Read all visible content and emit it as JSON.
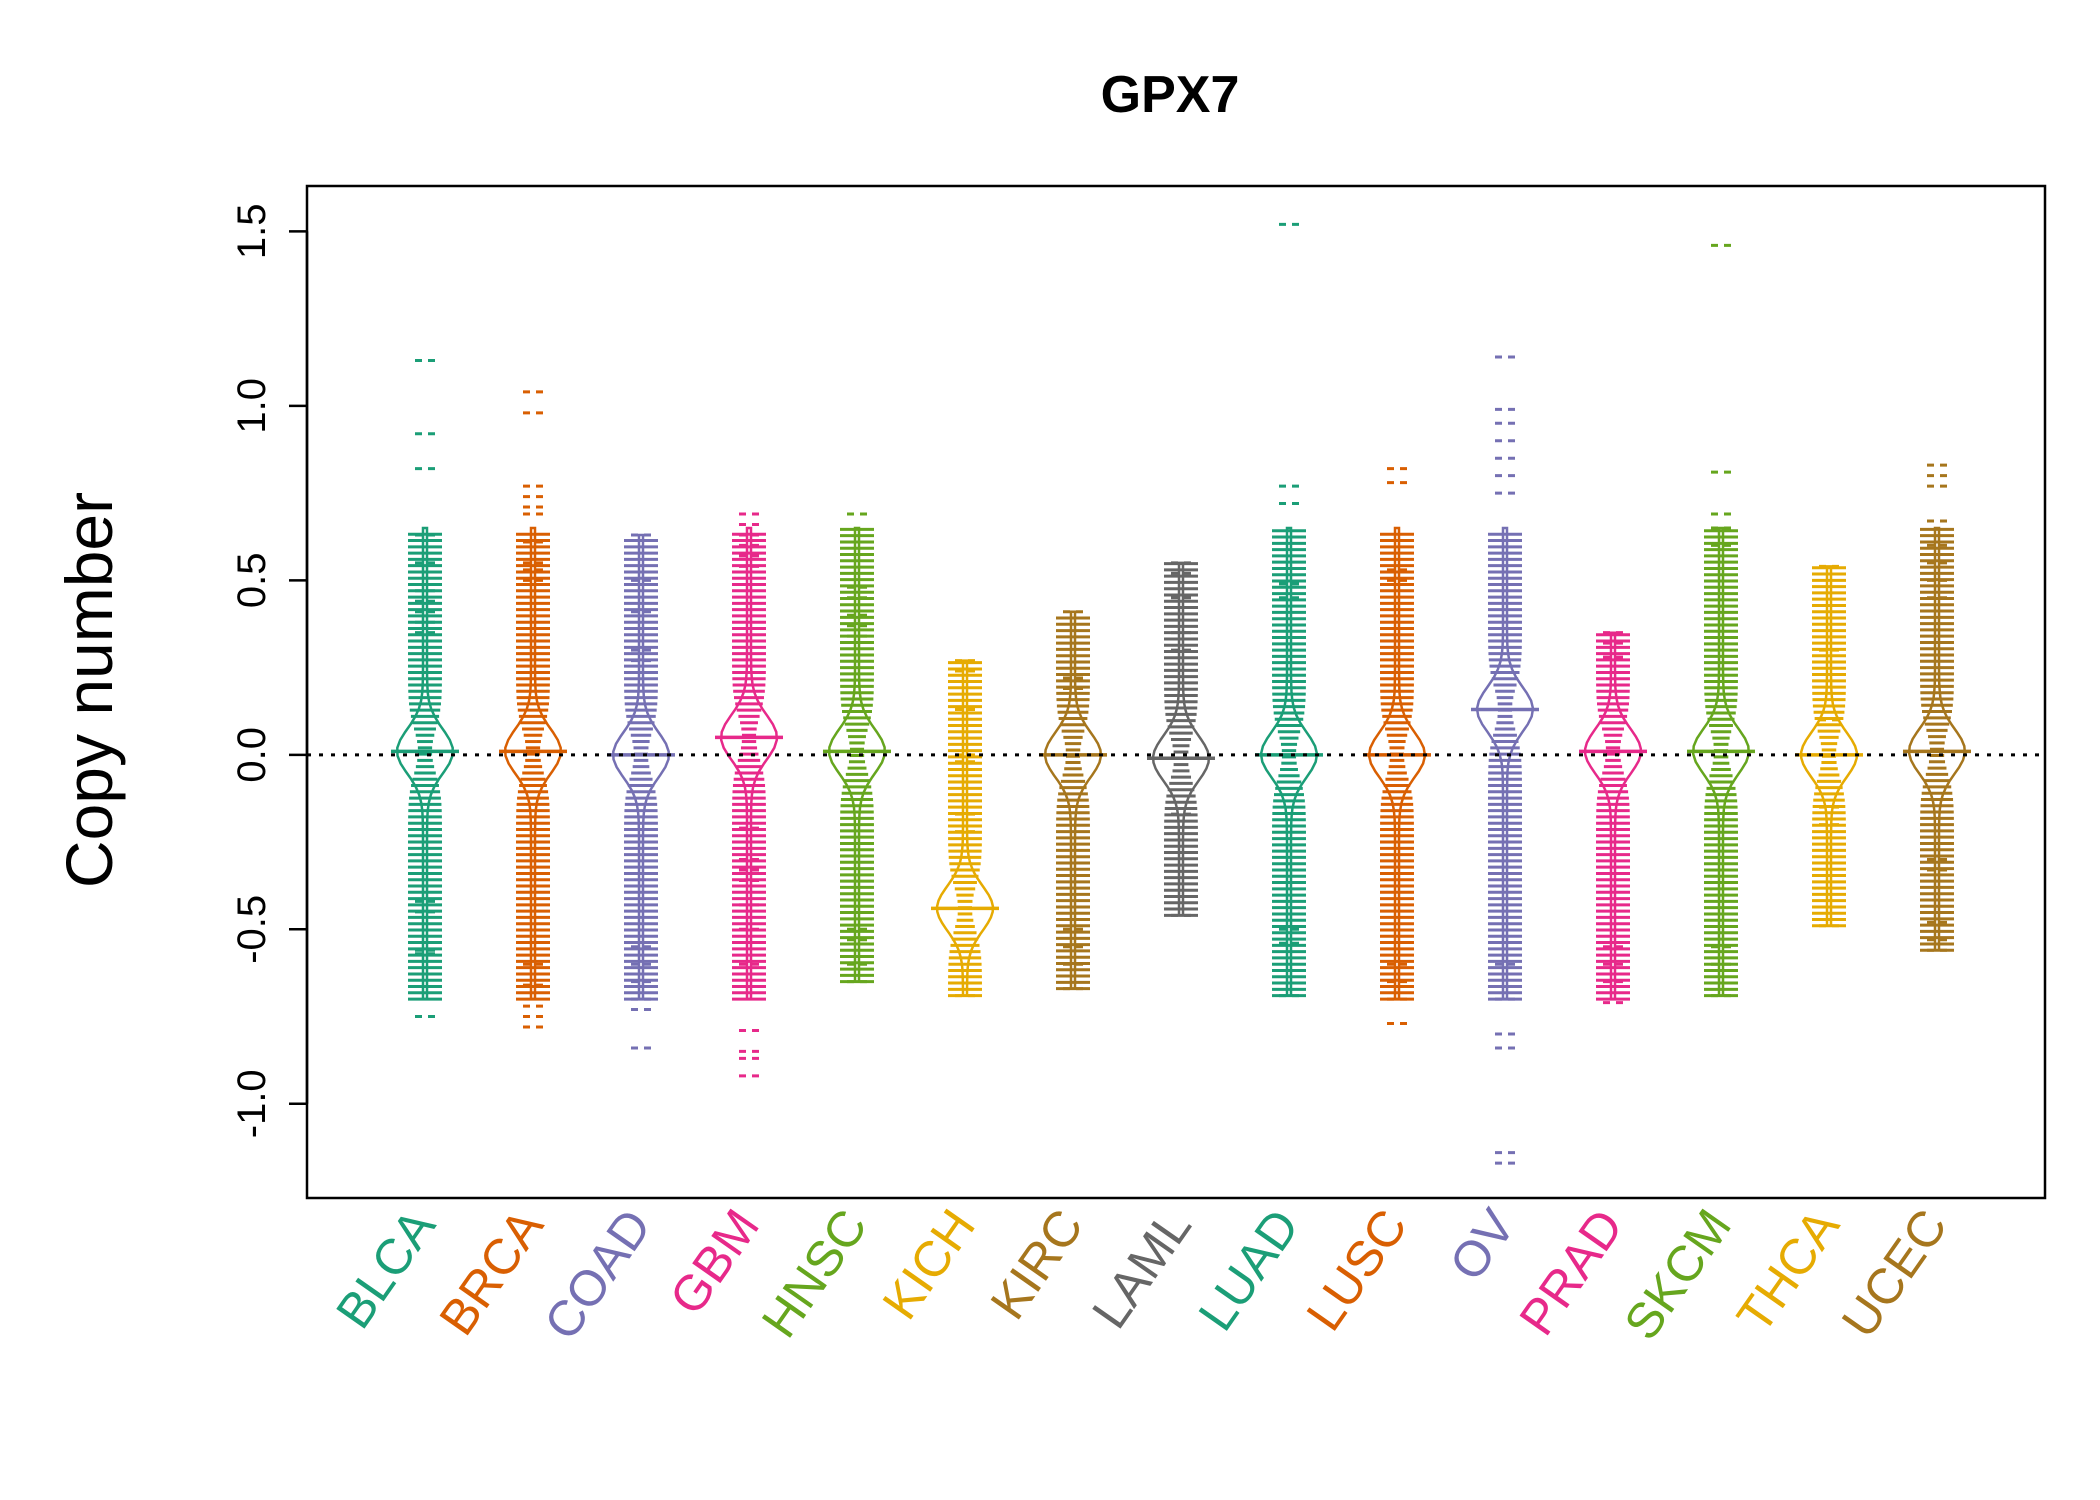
{
  "chart_data": {
    "type": "beanplot",
    "title": "GPX7",
    "xlabel": "",
    "ylabel": "Copy number",
    "ylim": [
      -1.27,
      1.63
    ],
    "yticks": [
      -1.0,
      -0.5,
      0.0,
      0.5,
      1.0,
      1.5
    ],
    "ytick_labels": [
      "-1.0",
      "-0.5",
      "0.0",
      "0.5",
      "1.0",
      "1.5"
    ],
    "reference_line": 0.0,
    "grid": false,
    "legend": "none",
    "categories": [
      "BLCA",
      "BRCA",
      "COAD",
      "GBM",
      "HNSC",
      "KICH",
      "KIRC",
      "LAML",
      "LUAD",
      "LUSC",
      "OV",
      "PRAD",
      "SKCM",
      "THCA",
      "UCEC"
    ],
    "colors": {
      "BLCA": "#1b9e77",
      "BRCA": "#d95f02",
      "COAD": "#7570b3",
      "GBM": "#e7298a",
      "HNSC": "#66a61e",
      "KICH": "#e6ab02",
      "KIRC": "#a6761d",
      "LAML": "#666666",
      "LUAD": "#1b9e77",
      "LUSC": "#d95f02",
      "OV": "#7570b3",
      "PRAD": "#e7298a",
      "SKCM": "#66a61e",
      "THCA": "#e6ab02",
      "UCEC": "#a6761d"
    },
    "series": [
      {
        "category": "BLCA",
        "min": -0.75,
        "max": 1.13,
        "median": 0.01,
        "outliers": [
          1.13,
          0.92,
          0.82,
          0.63,
          0.55,
          0.47,
          0.44,
          0.41,
          0.38,
          0.35,
          -0.42,
          -0.45,
          -0.56,
          -0.57,
          -0.75
        ]
      },
      {
        "category": "BRCA",
        "min": -0.78,
        "max": 1.04,
        "median": 0.01,
        "outliers": [
          1.04,
          0.98,
          0.77,
          0.74,
          0.71,
          0.69,
          0.61,
          0.55,
          0.53,
          0.5,
          -0.6,
          -0.66,
          -0.72,
          -0.75,
          -0.78
        ]
      },
      {
        "category": "COAD",
        "min": -0.84,
        "max": 0.63,
        "median": 0.0,
        "outliers": [
          0.63,
          0.5,
          0.41,
          0.3,
          0.27,
          -0.55,
          -0.6,
          -0.65,
          -0.7,
          -0.73,
          -0.84
        ]
      },
      {
        "category": "GBM",
        "min": -0.92,
        "max": 0.69,
        "median": 0.05,
        "outliers": [
          0.69,
          0.66,
          0.63,
          0.6,
          0.57,
          0.54,
          -0.21,
          -0.3,
          -0.33,
          -0.36,
          -0.43,
          -0.5,
          -0.6,
          -0.79,
          -0.85,
          -0.87,
          -0.92
        ]
      },
      {
        "category": "HNSC",
        "min": -0.65,
        "max": 0.69,
        "median": 0.01,
        "outliers": [
          0.69,
          0.48,
          0.45,
          0.4,
          0.37,
          0.34,
          -0.5,
          -0.53,
          -0.6,
          -0.65
        ]
      },
      {
        "category": "KICH",
        "min": -0.69,
        "max": 0.27,
        "median": -0.44,
        "outliers": [
          0.27,
          0.24,
          0.13,
          0.0,
          -0.02,
          -0.17,
          -0.22,
          -0.69
        ]
      },
      {
        "category": "KIRC",
        "min": -0.67,
        "max": 0.41,
        "median": 0.0,
        "outliers": [
          0.41,
          0.22,
          0.19,
          -0.5,
          -0.55,
          -0.6,
          -0.67
        ]
      },
      {
        "category": "LAML",
        "min": -0.46,
        "max": 0.55,
        "median": -0.01,
        "outliers": [
          0.55,
          0.52,
          0.45,
          0.35,
          0.3,
          -0.17,
          -0.46
        ]
      },
      {
        "category": "LUAD",
        "min": -0.69,
        "max": 1.52,
        "median": 0.0,
        "outliers": [
          1.52,
          0.77,
          0.72,
          0.49,
          0.45,
          -0.5,
          -0.54,
          -0.69
        ]
      },
      {
        "category": "LUSC",
        "min": -0.77,
        "max": 0.82,
        "median": 0.0,
        "outliers": [
          0.82,
          0.78,
          0.53,
          0.5,
          -0.6,
          -0.65,
          -0.7,
          -0.77
        ]
      },
      {
        "category": "OV",
        "min": -1.17,
        "max": 1.14,
        "median": 0.13,
        "outliers": [
          1.14,
          0.99,
          0.95,
          0.9,
          0.85,
          0.8,
          0.75,
          -0.6,
          -0.7,
          -0.8,
          -0.84,
          -1.14,
          -1.17
        ]
      },
      {
        "category": "PRAD",
        "min": -0.71,
        "max": 0.35,
        "median": 0.01,
        "outliers": [
          0.35,
          0.32,
          0.28,
          -0.55,
          -0.6,
          -0.65,
          -0.71
        ]
      },
      {
        "category": "SKCM",
        "min": -0.69,
        "max": 1.46,
        "median": 0.01,
        "outliers": [
          1.46,
          0.81,
          0.69,
          0.65,
          0.6,
          -0.55,
          -0.6,
          -0.69
        ]
      },
      {
        "category": "THCA",
        "min": -0.49,
        "max": 0.54,
        "median": 0.0,
        "outliers": [
          0.54,
          0.3,
          0.14,
          0.1,
          -0.15,
          -0.2,
          -0.49
        ]
      },
      {
        "category": "UCEC",
        "min": -0.56,
        "max": 0.83,
        "median": 0.01,
        "outliers": [
          0.83,
          0.8,
          0.77,
          0.67,
          0.6,
          0.55,
          0.5,
          0.45,
          -0.3,
          -0.33,
          -0.48,
          -0.53,
          -0.56
        ]
      }
    ]
  }
}
